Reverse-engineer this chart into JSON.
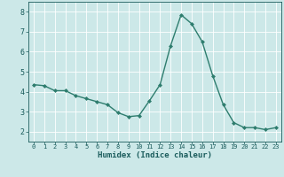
{
  "x": [
    0,
    1,
    2,
    3,
    4,
    5,
    6,
    7,
    8,
    9,
    10,
    11,
    12,
    13,
    14,
    15,
    16,
    17,
    18,
    19,
    20,
    21,
    22,
    23
  ],
  "y": [
    4.35,
    4.3,
    4.05,
    4.05,
    3.8,
    3.65,
    3.5,
    3.35,
    2.95,
    2.75,
    2.8,
    3.55,
    4.35,
    6.3,
    7.85,
    7.4,
    6.5,
    4.8,
    3.35,
    2.45,
    2.2,
    2.2,
    2.1,
    2.2
  ],
  "line_color": "#2e7d6e",
  "marker": "D",
  "marker_size": 2.0,
  "bg_color": "#cce8e8",
  "grid_color": "#ffffff",
  "xlabel": "Humidex (Indice chaleur)",
  "tick_color": "#1a5c5c",
  "ylim": [
    1.5,
    8.5
  ],
  "xlim": [
    -0.5,
    23.5
  ],
  "yticks": [
    2,
    3,
    4,
    5,
    6,
    7,
    8
  ],
  "xticks": [
    0,
    1,
    2,
    3,
    4,
    5,
    6,
    7,
    8,
    9,
    10,
    11,
    12,
    13,
    14,
    15,
    16,
    17,
    18,
    19,
    20,
    21,
    22,
    23
  ],
  "grid_linewidth": 0.6,
  "line_width": 1.0,
  "xtick_fontsize": 5.0,
  "ytick_fontsize": 6.0,
  "xlabel_fontsize": 6.5
}
